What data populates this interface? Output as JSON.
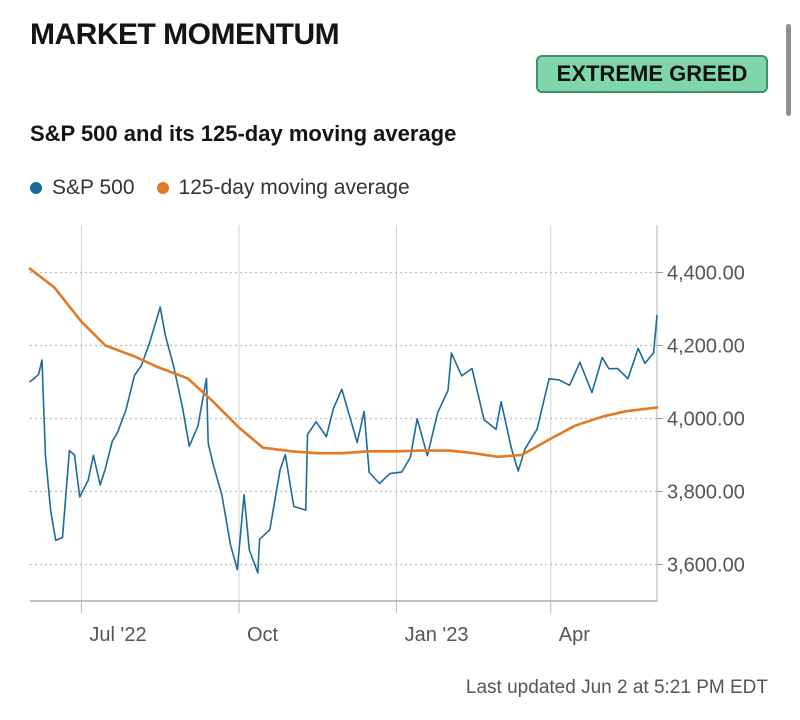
{
  "header": {
    "title": "MARKET MOMENTUM",
    "badge_label": "EXTREME GREED"
  },
  "colors": {
    "badge_fill": "#7fd6ac",
    "sp500": "#1c6c9a",
    "moving_average": "#e07a26"
  },
  "footer": {
    "last_updated": "Last updated Jun 2 at 5:21 PM EDT"
  },
  "chart_data": {
    "type": "line",
    "title": "S&P 500 and its 125-day moving average",
    "legend_position": "top-left",
    "grid": true,
    "y_axis_side": "right",
    "ylim": [
      3500,
      4530
    ],
    "yticks": [
      3600,
      3800,
      4000,
      4200,
      4400
    ],
    "ytick_labels": [
      "3,600.00",
      "3,800.00",
      "4,000.00",
      "4,200.00",
      "4,400.00"
    ],
    "xlim": [
      "2022-06-01",
      "2023-06-02"
    ],
    "xticks": [
      "2022-07-01",
      "2022-10-01",
      "2023-01-01",
      "2023-04-01"
    ],
    "xtick_labels": [
      "Jul '22",
      "Oct",
      "Jan '23",
      "Apr"
    ],
    "series": [
      {
        "name": "S&P 500",
        "color": "#1c6c9a",
        "x": [
          "2022-06-01",
          "2022-06-03",
          "2022-06-06",
          "2022-06-08",
          "2022-06-10",
          "2022-06-13",
          "2022-06-16",
          "2022-06-20",
          "2022-06-24",
          "2022-06-27",
          "2022-06-30",
          "2022-07-05",
          "2022-07-08",
          "2022-07-12",
          "2022-07-15",
          "2022-07-19",
          "2022-07-22",
          "2022-07-27",
          "2022-08-01",
          "2022-08-05",
          "2022-08-10",
          "2022-08-16",
          "2022-08-19",
          "2022-08-24",
          "2022-08-29",
          "2022-09-02",
          "2022-09-07",
          "2022-09-12",
          "2022-09-13",
          "2022-09-16",
          "2022-09-21",
          "2022-09-26",
          "2022-09-30",
          "2022-10-04",
          "2022-10-07",
          "2022-10-12",
          "2022-10-13",
          "2022-10-19",
          "2022-10-25",
          "2022-10-28",
          "2022-11-02",
          "2022-11-09",
          "2022-11-10",
          "2022-11-15",
          "2022-11-21",
          "2022-11-25",
          "2022-11-30",
          "2022-12-05",
          "2022-12-09",
          "2022-12-13",
          "2022-12-16",
          "2022-12-22",
          "2022-12-28",
          "2023-01-04",
          "2023-01-09",
          "2023-01-13",
          "2023-01-19",
          "2023-01-25",
          "2023-01-31",
          "2023-02-02",
          "2023-02-08",
          "2023-02-14",
          "2023-02-21",
          "2023-02-28",
          "2023-03-03",
          "2023-03-09",
          "2023-03-13",
          "2023-03-17",
          "2023-03-24",
          "2023-03-31",
          "2023-04-06",
          "2023-04-12",
          "2023-04-18",
          "2023-04-25",
          "2023-05-01",
          "2023-05-05",
          "2023-05-10",
          "2023-05-16",
          "2023-05-22",
          "2023-05-26",
          "2023-05-31",
          "2023-06-02"
        ],
        "values": [
          4101,
          4108,
          4121,
          4160,
          3900,
          3749,
          3666,
          3674,
          3912,
          3900,
          3785,
          3831,
          3899,
          3818,
          3863,
          3937,
          3961,
          4023,
          4118,
          4145,
          4210,
          4305,
          4228,
          4140,
          4030,
          3924,
          3979,
          4110,
          3932,
          3873,
          3790,
          3655,
          3586,
          3791,
          3640,
          3577,
          3669,
          3695,
          3859,
          3901,
          3759,
          3749,
          3956,
          3991,
          3950,
          4026,
          4080,
          3999,
          3934,
          4019,
          3852,
          3822,
          3849,
          3853,
          3893,
          3999,
          3898,
          4016,
          4077,
          4179,
          4117,
          4137,
          3997,
          3970,
          4046,
          3918,
          3856,
          3917,
          3971,
          4109,
          4105,
          4091,
          4154,
          4071,
          4167,
          4136,
          4137,
          4109,
          4192,
          4151,
          4180,
          4282
        ]
      },
      {
        "name": "125-day moving average",
        "color": "#e07a26",
        "x": [
          "2022-06-01",
          "2022-06-15",
          "2022-07-01",
          "2022-07-15",
          "2022-08-01",
          "2022-08-15",
          "2022-09-01",
          "2022-09-15",
          "2022-10-01",
          "2022-10-15",
          "2022-11-01",
          "2022-11-15",
          "2022-12-01",
          "2022-12-15",
          "2023-01-01",
          "2023-01-15",
          "2023-02-01",
          "2023-02-15",
          "2023-03-01",
          "2023-03-15",
          "2023-04-01",
          "2023-04-15",
          "2023-05-01",
          "2023-05-15",
          "2023-06-02"
        ],
        "values": [
          4410,
          4360,
          4265,
          4200,
          4170,
          4140,
          4110,
          4050,
          3975,
          3920,
          3910,
          3905,
          3905,
          3910,
          3910,
          3912,
          3912,
          3905,
          3895,
          3900,
          3945,
          3980,
          4005,
          4020,
          4030
        ]
      }
    ]
  }
}
